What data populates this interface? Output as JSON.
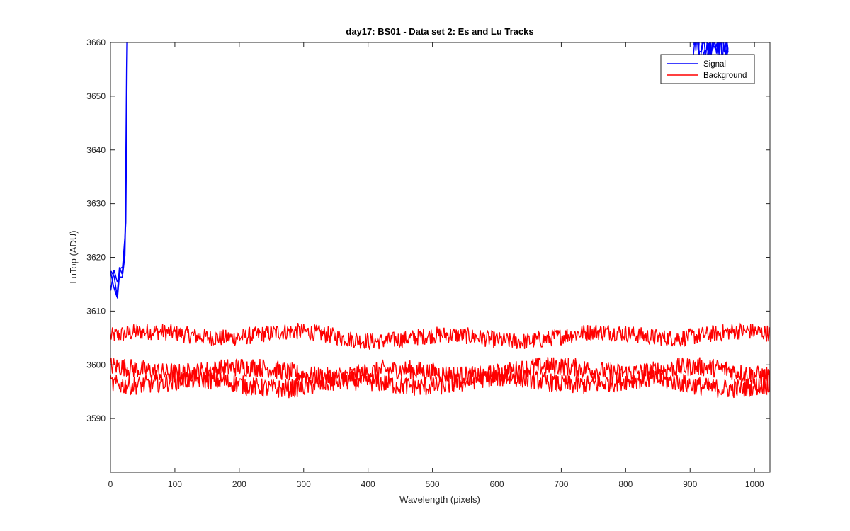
{
  "chart_data": {
    "type": "line",
    "title": "day17: BS01 - Data set 2: Es and Lu Tracks",
    "xlabel": "Wavelength (pixels)",
    "ylabel": "LuTop (ADU)",
    "xlim": [
      0,
      1024
    ],
    "ylim": [
      3580,
      3660
    ],
    "xticks": [
      0,
      100,
      200,
      300,
      400,
      500,
      600,
      700,
      800,
      900,
      1000
    ],
    "yticks": [
      3590,
      3600,
      3610,
      3620,
      3630,
      3640,
      3650,
      3660
    ],
    "grid": false,
    "legend": {
      "placement": "top-right"
    },
    "series": [
      {
        "name": "Signal",
        "color": "#0000ff",
        "traces": 3,
        "noise_amplitude": 2.5,
        "points": [
          [
            0,
            3615
          ],
          [
            5,
            3616
          ],
          [
            10,
            3614
          ],
          [
            14,
            3617
          ],
          [
            18,
            3618
          ],
          [
            22,
            3622
          ],
          [
            23,
            3628
          ],
          [
            24,
            3640
          ],
          [
            25,
            3655
          ],
          [
            26,
            3665
          ]
        ],
        "right_segment": {
          "x": [
            905,
            960
          ],
          "y_min": 3657,
          "y_max": 3662
        }
      },
      {
        "name": "Background",
        "color": "#ff0000",
        "traces": [
          {
            "mean": 3605.3,
            "noise_amplitude": 1.6
          },
          {
            "mean": 3598.8,
            "noise_amplitude": 1.8
          },
          {
            "mean": 3596.6,
            "noise_amplitude": 1.8
          }
        ]
      }
    ]
  }
}
